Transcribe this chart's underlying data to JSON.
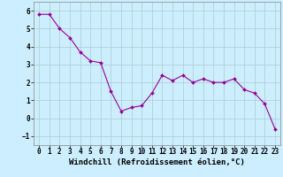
{
  "x": [
    0,
    1,
    2,
    3,
    4,
    5,
    6,
    7,
    8,
    9,
    10,
    11,
    12,
    13,
    14,
    15,
    16,
    17,
    18,
    19,
    20,
    21,
    22,
    23
  ],
  "y": [
    5.8,
    5.8,
    5.0,
    4.5,
    3.7,
    3.2,
    3.1,
    1.5,
    0.4,
    0.6,
    0.7,
    1.4,
    2.4,
    2.1,
    2.4,
    2.0,
    2.2,
    2.0,
    2.0,
    2.2,
    1.6,
    1.4,
    0.8,
    -0.6
  ],
  "line_color": "#990099",
  "marker": "D",
  "marker_size": 2.0,
  "bg_color": "#cceeff",
  "grid_color": "#aacccc",
  "xlabel": "Windchill (Refroidissement éolien,°C)",
  "ylim": [
    -1.5,
    6.5
  ],
  "xlim": [
    -0.5,
    23.5
  ],
  "yticks": [
    -1,
    0,
    1,
    2,
    3,
    4,
    5,
    6
  ],
  "xtick_labels": [
    "0",
    "1",
    "2",
    "3",
    "4",
    "5",
    "6",
    "7",
    "8",
    "9",
    "10",
    "11",
    "12",
    "13",
    "14",
    "15",
    "16",
    "17",
    "18",
    "19",
    "20",
    "21",
    "22",
    "23"
  ],
  "xlabel_fontsize": 6.5,
  "tick_fontsize": 5.5,
  "linewidth": 0.8
}
